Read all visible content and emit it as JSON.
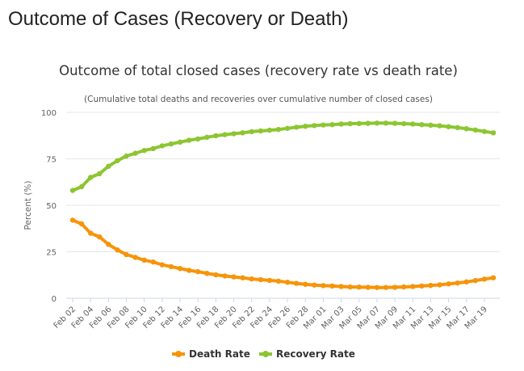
{
  "page": {
    "heading": "Outcome of Cases (Recovery or Death)"
  },
  "colors": {
    "death": "#f7940a",
    "recovery": "#8cc631",
    "grid": "#e6e6e6",
    "axis": "#ccd6eb"
  },
  "chart_data": {
    "type": "line",
    "title": "Outcome of total closed cases (recovery rate vs death rate)",
    "subtitle": "(Cumulative total deaths and recoveries over cumulative number of closed cases)",
    "ylabel": "Percent (%)",
    "xlabel": "",
    "ylim": [
      0,
      100
    ],
    "yticks": [
      0,
      25,
      50,
      75,
      100
    ],
    "grid": true,
    "legend_position": "bottom-center",
    "x_tick_labels": [
      "Feb 02",
      "Feb 04",
      "Feb 06",
      "Feb 08",
      "Feb 10",
      "Feb 12",
      "Feb 14",
      "Feb 16",
      "Feb 18",
      "Feb 20",
      "Feb 22",
      "Feb 24",
      "Feb 26",
      "Feb 28",
      "Mar 01",
      "Mar 03",
      "Mar 05",
      "Mar 07",
      "Mar 09",
      "Mar 11",
      "Mar 13",
      "Mar 15",
      "Mar 17",
      "Mar 19"
    ],
    "x": [
      "Feb 02",
      "Feb 03",
      "Feb 04",
      "Feb 05",
      "Feb 06",
      "Feb 07",
      "Feb 08",
      "Feb 09",
      "Feb 10",
      "Feb 11",
      "Feb 12",
      "Feb 13",
      "Feb 14",
      "Feb 15",
      "Feb 16",
      "Feb 17",
      "Feb 18",
      "Feb 19",
      "Feb 20",
      "Feb 21",
      "Feb 22",
      "Feb 23",
      "Feb 24",
      "Feb 25",
      "Feb 26",
      "Feb 27",
      "Feb 28",
      "Feb 29",
      "Mar 01",
      "Mar 02",
      "Mar 03",
      "Mar 04",
      "Mar 05",
      "Mar 06",
      "Mar 07",
      "Mar 08",
      "Mar 09",
      "Mar 10",
      "Mar 11",
      "Mar 12",
      "Mar 13",
      "Mar 14",
      "Mar 15",
      "Mar 16",
      "Mar 17",
      "Mar 18",
      "Mar 19",
      "Mar 20"
    ],
    "series": [
      {
        "name": "Death Rate",
        "values": [
          42,
          40,
          35,
          33,
          29,
          26,
          23.5,
          22,
          20.5,
          19.5,
          18,
          17,
          16,
          15,
          14.3,
          13.4,
          12.6,
          12,
          11.5,
          11,
          10.4,
          10,
          9.6,
          9.2,
          8.6,
          8,
          7.5,
          7.1,
          6.8,
          6.6,
          6.3,
          6.1,
          6.0,
          5.9,
          5.8,
          5.8,
          5.9,
          6.1,
          6.3,
          6.6,
          6.9,
          7.2,
          7.7,
          8.2,
          8.8,
          9.5,
          10.3,
          11
        ]
      },
      {
        "name": "Recovery Rate",
        "values": [
          58,
          60,
          65,
          67,
          71,
          74,
          76.5,
          78,
          79.5,
          80.5,
          82,
          83,
          84,
          85,
          85.7,
          86.6,
          87.4,
          88,
          88.5,
          89,
          89.6,
          90,
          90.4,
          90.8,
          91.4,
          92,
          92.5,
          92.9,
          93.2,
          93.4,
          93.7,
          93.9,
          94,
          94.1,
          94.2,
          94.2,
          94.1,
          93.9,
          93.7,
          93.4,
          93.1,
          92.8,
          92.3,
          91.8,
          91.2,
          90.5,
          89.7,
          89
        ]
      }
    ]
  }
}
